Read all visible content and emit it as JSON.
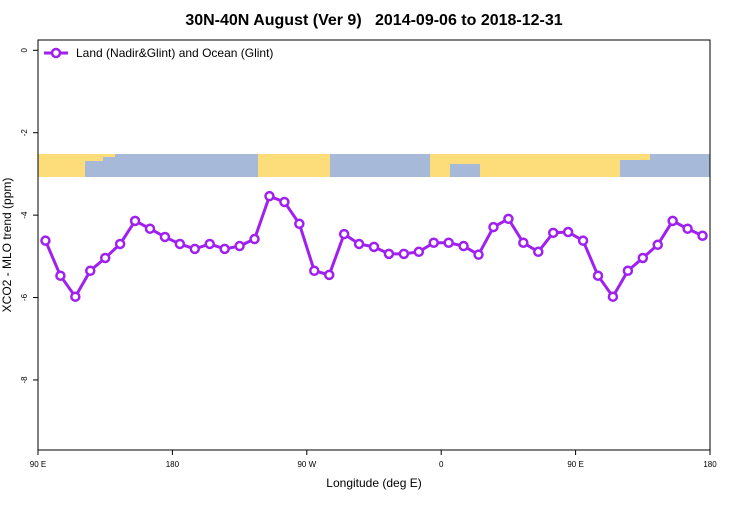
{
  "chart_data": {
    "type": "line",
    "title": "30N-40N August (Ver 9)   2014-09-06 to 2018-12-31",
    "x_label": "Longitude (deg E)",
    "y_label": "XCO2 - MLO trend (ppm)",
    "xlim": [
      90,
      540
    ],
    "xticks": [
      {
        "value": 90,
        "label": "90 E"
      },
      180,
      {
        "value": 270,
        "label": "90 W"
      },
      {
        "value": 360,
        "label": "0"
      },
      {
        "value": 450,
        "label": "90 E"
      },
      {
        "value": 540,
        "label": "180"
      }
    ],
    "ylim": [
      -9.7,
      0.25
    ],
    "yticks": [
      0,
      -2,
      -4,
      -6,
      -8
    ],
    "x": [
      95,
      105,
      115,
      125,
      135,
      145,
      155,
      165,
      175,
      185,
      195,
      205,
      215,
      225,
      235,
      245,
      255,
      265,
      275,
      285,
      295,
      305,
      315,
      325,
      335,
      345,
      355,
      365,
      375,
      385,
      395,
      405,
      415,
      425,
      435,
      445,
      455,
      465,
      475,
      485,
      495,
      505,
      515,
      525,
      535
    ],
    "series": [
      {
        "name": "Land (Nadir&Glint) and Ocean (Glint)",
        "color": "#a020f0",
        "values": [
          -4.62,
          -5.47,
          -5.98,
          -5.35,
          -5.04,
          -4.7,
          -4.14,
          -4.33,
          -4.53,
          -4.7,
          -4.82,
          -4.7,
          -4.82,
          -4.75,
          -4.58,
          -3.54,
          -3.68,
          -4.21,
          -5.35,
          -5.45,
          -4.46,
          -4.7,
          -4.77,
          -4.94,
          -4.94,
          -4.89,
          -4.67,
          -4.67,
          -4.75,
          -4.96,
          -4.29,
          -4.09,
          -4.67,
          -4.89,
          -4.43,
          -4.41,
          -4.62,
          -5.47,
          -5.98,
          -5.35,
          -5.04,
          -4.72,
          -4.14,
          -4.33,
          -4.5
        ]
      }
    ]
  }
}
